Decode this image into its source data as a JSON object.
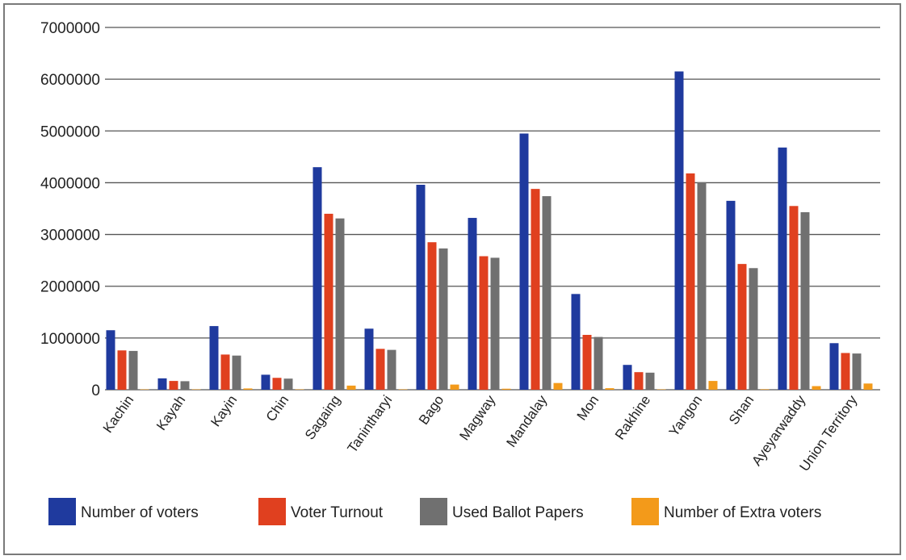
{
  "chart_data": {
    "type": "bar",
    "categories": [
      "Kachin",
      "Kayah",
      "Kayin",
      "Chin",
      "Sagaing",
      "Tanintharyi",
      "Bago",
      "Magway",
      "Mandalay",
      "Mon",
      "Rakhine",
      "Yangon",
      "Shan",
      "Ayeyarwaddy",
      "Union Territory"
    ],
    "series": [
      {
        "name": "Number of voters",
        "color": "#1f3a9e",
        "values": [
          1150000,
          220000,
          1230000,
          290000,
          4300000,
          1180000,
          3960000,
          3320000,
          4950000,
          1850000,
          480000,
          6150000,
          3650000,
          4680000,
          900000
        ]
      },
      {
        "name": "Voter Turnout",
        "color": "#e0401f",
        "values": [
          760000,
          170000,
          680000,
          230000,
          3400000,
          790000,
          2850000,
          2580000,
          3880000,
          1060000,
          340000,
          4180000,
          2430000,
          3550000,
          710000
        ]
      },
      {
        "name": "Used Ballot Papers",
        "color": "#707070",
        "values": [
          750000,
          165000,
          660000,
          215000,
          3310000,
          770000,
          2730000,
          2550000,
          3740000,
          1020000,
          330000,
          4010000,
          2350000,
          3430000,
          700000
        ]
      },
      {
        "name": "Number of Extra voters",
        "color": "#f39a1a",
        "values": [
          5000,
          2000,
          25000,
          3000,
          80000,
          8000,
          100000,
          20000,
          130000,
          30000,
          5000,
          170000,
          10000,
          70000,
          120000
        ]
      }
    ],
    "ylim": [
      0,
      7000000
    ],
    "yticks": [
      0,
      1000000,
      2000000,
      3000000,
      4000000,
      5000000,
      6000000,
      7000000
    ],
    "ytick_labels": [
      "0",
      "1000000",
      "2000000",
      "3000000",
      "4000000",
      "5000000",
      "6000000",
      "7000000"
    ],
    "grid": true,
    "legend_position": "bottom"
  }
}
